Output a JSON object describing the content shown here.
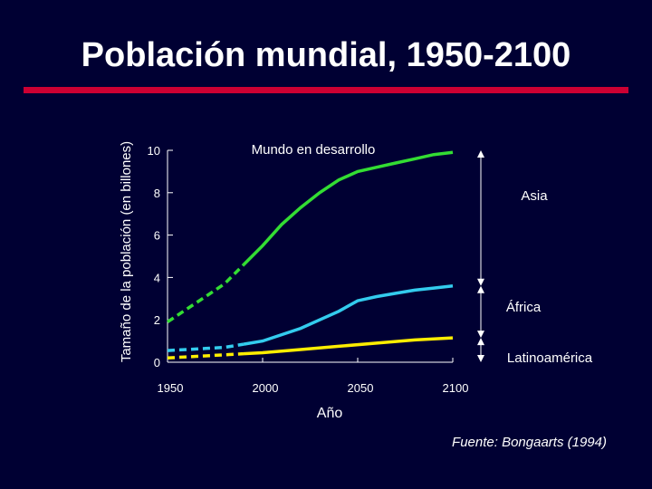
{
  "slide": {
    "title": "Población mundial, 1950-2100",
    "source": "Fuente:  Bongaarts (1994)"
  },
  "colors": {
    "background": "#000033",
    "title_rule": "#cc0033",
    "world": "#33dd33",
    "asia_africa": "#33ccee",
    "latin_america": "#ffee00"
  },
  "chart_data": {
    "type": "line",
    "title": "",
    "xlabel": "Año",
    "ylabel": "Tamaño de la población (en billones)",
    "xlim": [
      1950,
      2100
    ],
    "ylim": [
      0,
      10
    ],
    "xticks": [
      1950,
      2000,
      2050,
      2100
    ],
    "yticks": [
      0,
      2,
      4,
      6,
      8,
      10
    ],
    "grid": false,
    "series": [
      {
        "name": "Mundo en desarrollo",
        "color": "#33dd33",
        "projection_start": 1990,
        "x": [
          1950,
          1960,
          1970,
          1980,
          1990,
          2000,
          2010,
          2020,
          2030,
          2040,
          2050,
          2060,
          2070,
          2080,
          2090,
          2100
        ],
        "y": [
          1.9,
          2.5,
          3.1,
          3.7,
          4.6,
          5.5,
          6.5,
          7.3,
          8.0,
          8.6,
          9.0,
          9.2,
          9.4,
          9.6,
          9.8,
          9.9
        ]
      },
      {
        "name": "África",
        "color": "#33ccee",
        "projection_start": 1990,
        "x": [
          1950,
          1960,
          1970,
          1980,
          1990,
          2000,
          2010,
          2020,
          2030,
          2040,
          2050,
          2060,
          2070,
          2080,
          2090,
          2100
        ],
        "y": [
          0.55,
          0.6,
          0.65,
          0.7,
          0.85,
          1.0,
          1.3,
          1.6,
          2.0,
          2.4,
          2.9,
          3.1,
          3.25,
          3.4,
          3.5,
          3.6
        ]
      },
      {
        "name": "Latinoamérica",
        "color": "#ffee00",
        "projection_start": 1990,
        "x": [
          1950,
          1960,
          1970,
          1980,
          1990,
          2000,
          2020,
          2040,
          2060,
          2080,
          2100
        ],
        "y": [
          0.2,
          0.25,
          0.3,
          0.35,
          0.4,
          0.45,
          0.6,
          0.75,
          0.9,
          1.05,
          1.15
        ]
      }
    ],
    "annotations": [
      {
        "text": "Mundo en desarrollo",
        "anchor": "top-center"
      },
      {
        "text": "Asia",
        "anchor": "right",
        "span": [
          3.6,
          10.0
        ]
      },
      {
        "text": "África",
        "anchor": "right",
        "span": [
          1.15,
          3.6
        ]
      },
      {
        "text": "Latinoamérica",
        "anchor": "right",
        "span": [
          0,
          1.15
        ]
      }
    ]
  }
}
